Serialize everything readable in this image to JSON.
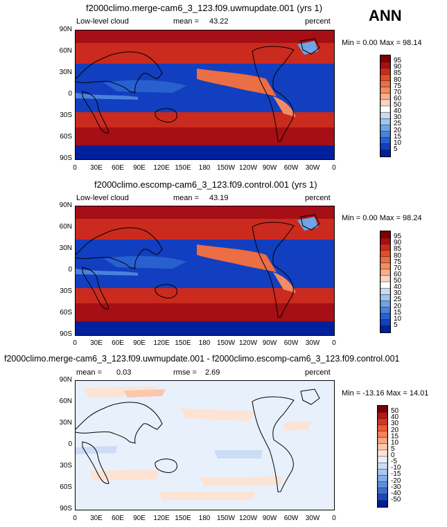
{
  "annual_label": "ANN",
  "panels": [
    {
      "title": "f2000climo.merge-cam6_3_123.f09.uwmupdate.001 (yrs 1)",
      "left_label": "Low-level cloud",
      "mid_label": "mean =",
      "mid_value": "43.22",
      "right_label": "percent",
      "minmax": "Min =    0.00 Max =   98.14",
      "colorbar_labels": [
        "95",
        "90",
        "85",
        "80",
        "75",
        "70",
        "60",
        "50",
        "40",
        "30",
        "25",
        "20",
        "15",
        "10",
        "5"
      ],
      "colorbar_colors": [
        "#7f0000",
        "#a50f15",
        "#cb2a1e",
        "#e04f2b",
        "#ec6e44",
        "#f48b62",
        "#f9ad8c",
        "#fcd3bd",
        "#ffffff",
        "#c7dbf5",
        "#9ec5ef",
        "#6fa5e6",
        "#4a82dc",
        "#2860cf",
        "#123fbf",
        "#00209c"
      ]
    },
    {
      "title": "f2000climo.escomp-cam6_3_123.f09.control.001 (yrs 1)",
      "left_label": "Low-level cloud",
      "mid_label": "mean =",
      "mid_value": "43.19",
      "right_label": "percent",
      "minmax": "Min =    0.00 Max =   98.24",
      "colorbar_labels": [
        "95",
        "90",
        "85",
        "80",
        "75",
        "70",
        "60",
        "50",
        "40",
        "30",
        "25",
        "20",
        "15",
        "10",
        "5"
      ],
      "colorbar_colors": [
        "#7f0000",
        "#a50f15",
        "#cb2a1e",
        "#e04f2b",
        "#ec6e44",
        "#f48b62",
        "#f9ad8c",
        "#fcd3bd",
        "#ffffff",
        "#c7dbf5",
        "#9ec5ef",
        "#6fa5e6",
        "#4a82dc",
        "#2860cf",
        "#123fbf",
        "#00209c"
      ]
    },
    {
      "title": "f2000climo.merge-cam6_3_123.f09.uwmupdate.001 - f2000climo.escomp-cam6_3_123.f09.control.001",
      "left_label": "mean =",
      "left_value": "0.03",
      "mid_label": "rmse =",
      "mid_value": "2.69",
      "right_label": "percent",
      "minmax": "Min = -13.16 Max =   14.01",
      "colorbar_labels": [
        "50",
        "40",
        "30",
        "20",
        "15",
        "10",
        "5",
        "0",
        "-5",
        "-10",
        "-15",
        "-20",
        "-30",
        "-40",
        "-50"
      ],
      "colorbar_colors": [
        "#7f0000",
        "#b3171c",
        "#d8351e",
        "#ec5c36",
        "#f4825a",
        "#f8a583",
        "#fbc8ae",
        "#fde3d4",
        "#e8f0fb",
        "#cbdcf4",
        "#a9c6ee",
        "#86aee6",
        "#5f8fdb",
        "#3a6dcd",
        "#1b49b8",
        "#001f95"
      ]
    }
  ],
  "lat_ticks": [
    "90N",
    "60N",
    "30N",
    "0",
    "30S",
    "60S",
    "90S"
  ],
  "lon_ticks": [
    "0",
    "30E",
    "60E",
    "90E",
    "120E",
    "150E",
    "180",
    "150W",
    "120W",
    "90W",
    "60W",
    "30W",
    "0"
  ]
}
